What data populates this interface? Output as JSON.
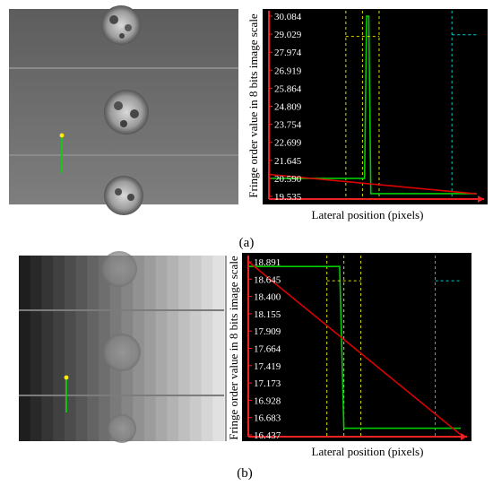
{
  "figure": {
    "panels": [
      {
        "caption": "(a)",
        "ylabel": "Fringe order value in 8 bits image scale",
        "xlabel": "Lateral position (pixels)"
      },
      {
        "caption": "(b)",
        "ylabel": "Fringe order value in 8 bits image scale",
        "xlabel": "Lateral position (pixels)"
      }
    ]
  },
  "chart_data": [
    {
      "type": "line",
      "ylabel": "Fringe order value in 8 bits image scale",
      "xlabel": "Lateral position (pixels)",
      "y_ticks": [
        "30.084",
        "29.029",
        "27.974",
        "26.919",
        "25.864",
        "24.809",
        "23.754",
        "22.699",
        "21.645",
        "20.590",
        "19.535"
      ],
      "ylim": [
        19.535,
        30.084
      ],
      "xlim": [
        0,
        100
      ],
      "series": [
        {
          "color": "#00cc00",
          "points": [
            [
              0,
              20.59
            ],
            [
              46,
              20.59
            ],
            [
              47,
              30.08
            ],
            [
              48,
              30.08
            ],
            [
              49,
              19.7
            ],
            [
              100,
              19.7
            ]
          ]
        },
        {
          "color": "#dd0000",
          "points": [
            [
              0,
              20.82
            ],
            [
              100,
              19.68
            ]
          ]
        },
        {
          "color": "#dddd00",
          "points": [
            [
              37,
              28.9
            ],
            [
              53,
              28.9
            ]
          ]
        },
        {
          "color": "#00cccc",
          "points": [
            [
              88,
              29.0
            ],
            [
              100,
              29.0
            ]
          ]
        }
      ],
      "vlines": [
        {
          "x": 37,
          "color": "#dddd00"
        },
        {
          "x": 45,
          "color": "#dddd00"
        },
        {
          "x": 53,
          "color": "#dddd00"
        },
        {
          "x": 88,
          "color": "#00cccc"
        }
      ]
    },
    {
      "type": "line",
      "ylabel": "Fringe order value in 8 bits image scale",
      "xlabel": "Lateral position (pixels)",
      "y_ticks": [
        "18.891",
        "18.645",
        "18.400",
        "18.155",
        "17.909",
        "17.664",
        "17.419",
        "17.173",
        "16.928",
        "16.683",
        "16.437"
      ],
      "ylim": [
        16.437,
        18.891
      ],
      "xlim": [
        0,
        100
      ],
      "series": [
        {
          "color": "#00cc00",
          "points": [
            [
              0,
              18.8
            ],
            [
              43,
              18.8
            ],
            [
              45,
              16.53
            ],
            [
              100,
              16.53
            ]
          ]
        },
        {
          "color": "#dd0000",
          "points": [
            [
              0,
              18.87
            ],
            [
              100,
              16.44
            ]
          ]
        },
        {
          "color": "#dddd00",
          "points": [
            [
              37,
              18.6
            ],
            [
              53,
              18.6
            ]
          ]
        },
        {
          "color": "#00cccc",
          "points": [
            [
              88,
              18.6
            ],
            [
              100,
              18.6
            ]
          ]
        }
      ],
      "vlines": [
        {
          "x": 37,
          "color": "#dddd00"
        },
        {
          "x": 45,
          "color": "#dddd00"
        },
        {
          "x": 53,
          "color": "#dddd00"
        },
        {
          "x": 88,
          "color": "#00cccc"
        }
      ]
    }
  ]
}
